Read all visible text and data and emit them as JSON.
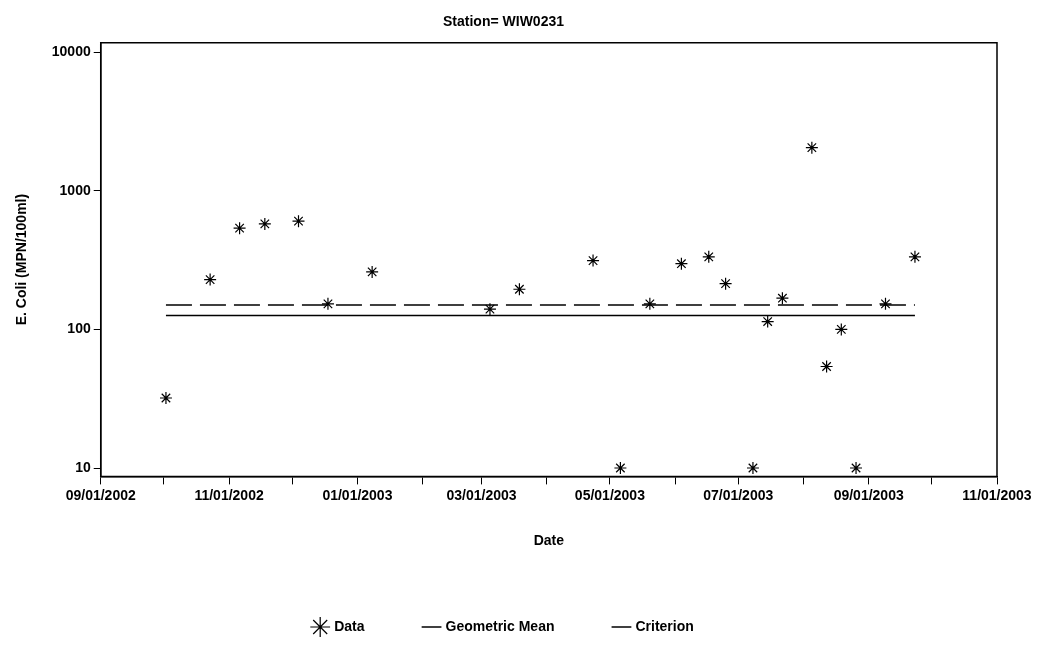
{
  "chart_data": {
    "type": "scatter",
    "title": "Station= WIW0231",
    "xlabel": "Date",
    "ylabel": "E. Coli (MPN/100ml)",
    "log": "y",
    "grid": false,
    "legend": "bottom",
    "xlim": [
      "2002-09-01",
      "2003-11-01"
    ],
    "xticks": [
      {
        "value": "2002-09-01",
        "label": "09/01/2002"
      },
      {
        "value": "2002-10-01",
        "label": null
      },
      {
        "value": "2002-11-01",
        "label": "11/01/2002"
      },
      {
        "value": "2002-12-01",
        "label": null
      },
      {
        "value": "2003-01-01",
        "label": "01/01/2003"
      },
      {
        "value": "2003-02-01",
        "label": null
      },
      {
        "value": "2003-03-01",
        "label": "03/01/2003"
      },
      {
        "value": "2003-04-01",
        "label": null
      },
      {
        "value": "2003-05-01",
        "label": "05/01/2003"
      },
      {
        "value": "2003-06-01",
        "label": null
      },
      {
        "value": "2003-07-01",
        "label": "07/01/2003"
      },
      {
        "value": "2003-08-01",
        "label": null
      },
      {
        "value": "2003-09-01",
        "label": "09/01/2003"
      },
      {
        "value": "2003-10-01",
        "label": null
      },
      {
        "value": "2003-11-01",
        "label": "11/01/2003"
      }
    ],
    "ylim": [
      8.7,
      11700
    ],
    "yticks": [
      10,
      100,
      1000,
      10000
    ],
    "series": [
      {
        "name": "Data",
        "type": "scatter",
        "marker": "cross",
        "color": "#000000",
        "x": [
          "2002-10-02",
          "2002-10-23",
          "2002-11-06",
          "2002-11-18",
          "2002-12-04",
          "2002-12-18",
          "2003-01-08",
          "2003-03-05",
          "2003-03-19",
          "2003-04-23",
          "2003-05-06",
          "2003-05-20",
          "2003-06-04",
          "2003-06-17",
          "2003-06-25",
          "2003-07-08",
          "2003-07-15",
          "2003-07-22",
          "2003-08-05",
          "2003-08-12",
          "2003-08-19",
          "2003-08-26",
          "2003-09-09",
          "2003-09-23"
        ],
        "values": [
          32,
          229,
          538,
          577,
          604,
          153,
          260,
          140,
          195,
          314,
          10,
          153,
          298,
          334,
          214,
          10,
          114,
          168,
          2050,
          54,
          100,
          10,
          153,
          334
        ]
      },
      {
        "name": "Geometric Mean",
        "type": "line",
        "marker": "none",
        "line_style": "dashed",
        "color": "#000000",
        "x": [
          "2002-10-02",
          "2003-09-23"
        ],
        "values": [
          150,
          150
        ]
      },
      {
        "name": "Criterion",
        "type": "line",
        "marker": "none",
        "line_style": "solid",
        "color": "#000000",
        "x": [
          "2002-10-02",
          "2003-09-23"
        ],
        "values": [
          126,
          126
        ]
      }
    ]
  }
}
